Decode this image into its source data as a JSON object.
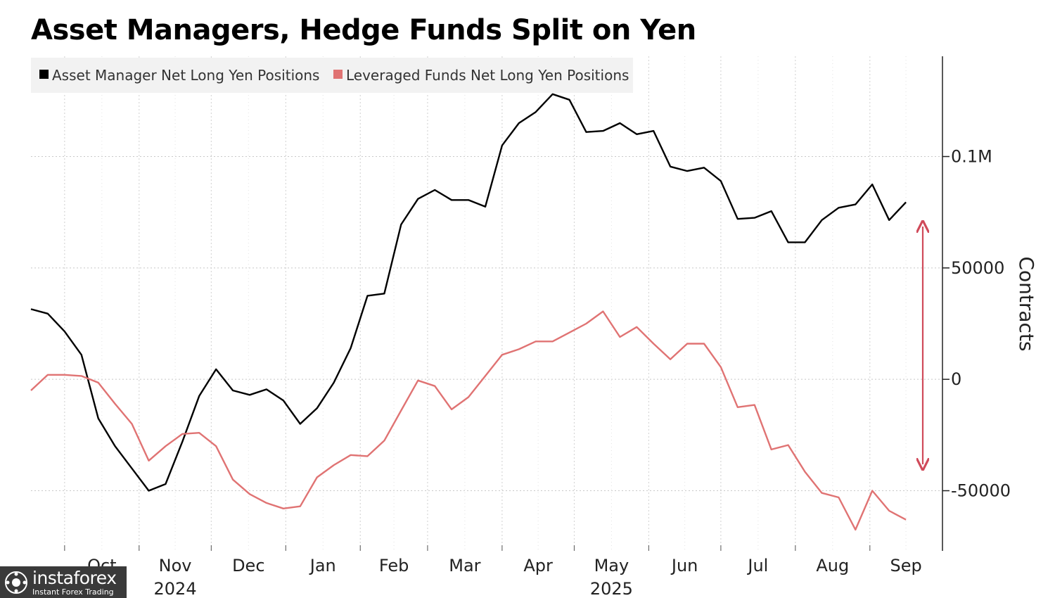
{
  "chart_data": {
    "type": "line",
    "title": "Asset Managers, Hedge Funds Split on Yen",
    "xlabel": "",
    "ylabel": "Contracts",
    "ylim": [
      -77000,
      145000
    ],
    "grid": true,
    "legend_position": "top-left",
    "x_ticks": [
      {
        "label": "Oct",
        "date": "2024-10-01"
      },
      {
        "label": "Nov",
        "date": "2024-11-01",
        "year": "2024"
      },
      {
        "label": "Dec",
        "date": "2024-12-01"
      },
      {
        "label": "Jan",
        "date": "2025-01-01"
      },
      {
        "label": "Feb",
        "date": "2025-02-01"
      },
      {
        "label": "Mar",
        "date": "2025-03-01"
      },
      {
        "label": "Apr",
        "date": "2025-04-01"
      },
      {
        "label": "May",
        "date": "2025-05-01",
        "year": "2025"
      },
      {
        "label": "Jun",
        "date": "2025-06-01"
      },
      {
        "label": "Jul",
        "date": "2025-07-01"
      },
      {
        "label": "Aug",
        "date": "2025-08-01"
      },
      {
        "label": "Sep",
        "date": "2025-09-01"
      }
    ],
    "y_ticks": [
      {
        "label": "0.1M",
        "value": 100000
      },
      {
        "label": "50000",
        "value": 50000
      },
      {
        "label": "0",
        "value": 0
      },
      {
        "label": "-50000",
        "value": -50000
      }
    ],
    "x": [
      "2024-09-17",
      "2024-09-24",
      "2024-10-01",
      "2024-10-08",
      "2024-10-15",
      "2024-10-22",
      "2024-10-29",
      "2024-11-05",
      "2024-11-12",
      "2024-11-19",
      "2024-11-26",
      "2024-12-03",
      "2024-12-10",
      "2024-12-17",
      "2024-12-24",
      "2024-12-31",
      "2025-01-07",
      "2025-01-14",
      "2025-01-21",
      "2025-01-28",
      "2025-02-04",
      "2025-02-11",
      "2025-02-18",
      "2025-02-25",
      "2025-03-04",
      "2025-03-11",
      "2025-03-18",
      "2025-03-25",
      "2025-04-01",
      "2025-04-08",
      "2025-04-15",
      "2025-04-22",
      "2025-04-29",
      "2025-05-06",
      "2025-05-13",
      "2025-05-20",
      "2025-05-27",
      "2025-06-03",
      "2025-06-10",
      "2025-06-17",
      "2025-06-24",
      "2025-07-01",
      "2025-07-08",
      "2025-07-15",
      "2025-07-22",
      "2025-07-29",
      "2025-08-05",
      "2025-08-12",
      "2025-08-19",
      "2025-08-26",
      "2025-09-02",
      "2025-09-09",
      "2025-09-16",
      "2025-09-23"
    ],
    "series": [
      {
        "name": "Asset Manager Net Long Yen Positions",
        "color": "#000000",
        "values": [
          31500,
          29500,
          21500,
          11000,
          -17500,
          -30000,
          -40000,
          -50000,
          -47000,
          -28000,
          -7500,
          4500,
          -5000,
          -7000,
          -4500,
          -9500,
          -20000,
          -13000,
          -1500,
          14000,
          37500,
          38500,
          69500,
          81000,
          85000,
          80500,
          80500,
          77500,
          105000,
          115000,
          120000,
          128000,
          125500,
          111000,
          111500,
          115000,
          110000,
          111500,
          95500,
          93500,
          95000,
          89000,
          72000,
          72500,
          75500,
          61500,
          61500,
          71500,
          77000,
          78500,
          87500,
          71500,
          79500,
          null
        ],
        "values_note": "last value is null because the series ends at 2025-09-16"
      },
      {
        "name": "Leveraged Funds Net Long Yen Positions",
        "color": "#e07373",
        "values": [
          -5000,
          2000,
          2000,
          1500,
          -1500,
          -11000,
          -20000,
          -36500,
          -30000,
          -24500,
          -24000,
          -30000,
          -45000,
          -51500,
          -55500,
          -58000,
          -57000,
          -44000,
          -38500,
          -34000,
          -34500,
          -27500,
          -14000,
          -500,
          -3000,
          -13500,
          -8000,
          1500,
          11000,
          13500,
          17000,
          17000,
          21000,
          25000,
          30500,
          19000,
          23500,
          16000,
          9000,
          16000,
          16000,
          5500,
          -12500,
          -11500,
          -31500,
          -29500,
          -41500,
          -51000,
          -53000,
          -67500,
          -50000,
          -59000,
          -63000,
          null
        ],
        "values_note": "last value is null because the series ends at 2025-09-16"
      }
    ]
  },
  "watermark": {
    "brand": "instaforex",
    "tagline": "Instant Forex Trading"
  }
}
